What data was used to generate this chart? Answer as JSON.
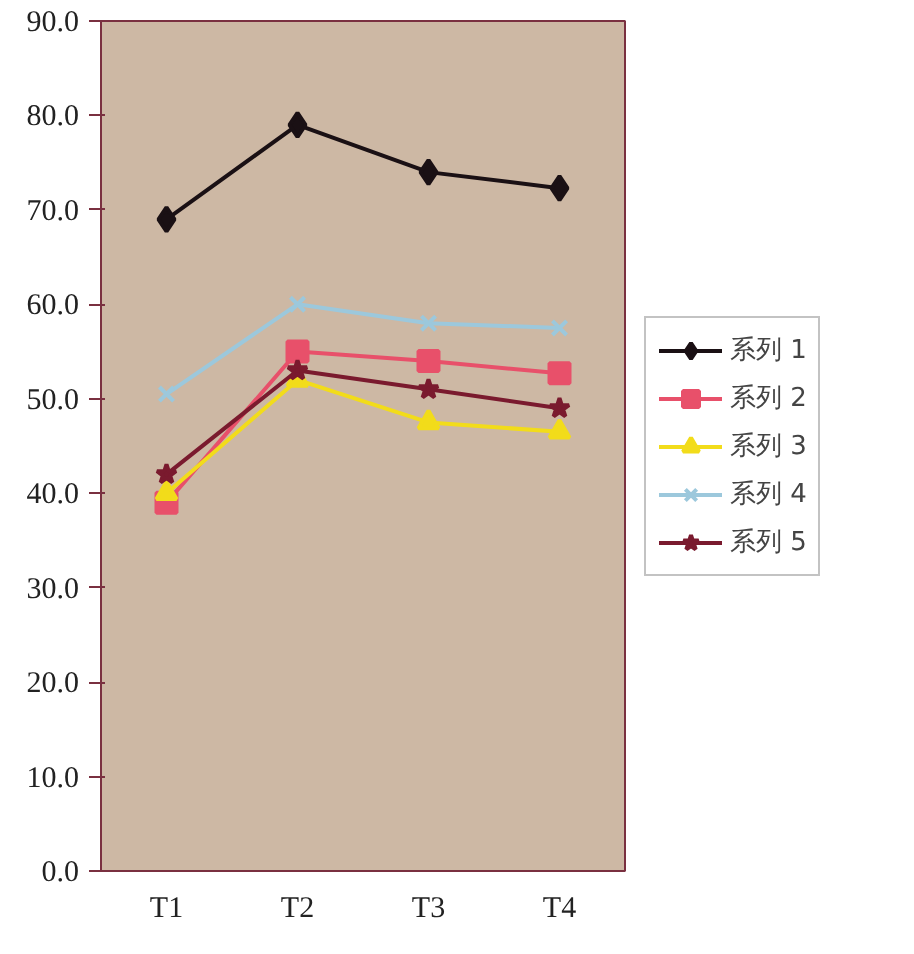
{
  "chart_data": {
    "type": "line",
    "categories": [
      "T1",
      "T2",
      "T3",
      "T4"
    ],
    "series": [
      {
        "name": "系列 1",
        "color": "#1a1014",
        "marker": "diamond",
        "values": [
          69,
          79,
          74,
          72.3
        ]
      },
      {
        "name": "系列 2",
        "color": "#e8506a",
        "marker": "square",
        "values": [
          39,
          55,
          54,
          52.7
        ]
      },
      {
        "name": "系列 3",
        "color": "#f2dc1a",
        "marker": "triangle",
        "values": [
          40,
          52,
          47.5,
          46.5
        ]
      },
      {
        "name": "系列 4",
        "color": "#9cc8dc",
        "marker": "cross",
        "values": [
          50.5,
          60,
          58,
          57.5
        ]
      },
      {
        "name": "系列 5",
        "color": "#7a1a2e",
        "marker": "star",
        "values": [
          42,
          53,
          51,
          49
        ]
      }
    ],
    "ylim": [
      0,
      90
    ],
    "yticks": [
      {
        "value": 0,
        "label": "0.0"
      },
      {
        "value": 10,
        "label": "10.0"
      },
      {
        "value": 20,
        "label": "20.0"
      },
      {
        "value": 30,
        "label": "30.0"
      },
      {
        "value": 40,
        "label": "40.0"
      },
      {
        "value": 50,
        "label": "50.0"
      },
      {
        "value": 60,
        "label": "60.0"
      },
      {
        "value": 70,
        "label": "70.0"
      },
      {
        "value": 80,
        "label": "80.0"
      },
      {
        "value": 90,
        "label": "90.0"
      }
    ],
    "grid": false,
    "legend": "right",
    "line_style": "solid"
  }
}
